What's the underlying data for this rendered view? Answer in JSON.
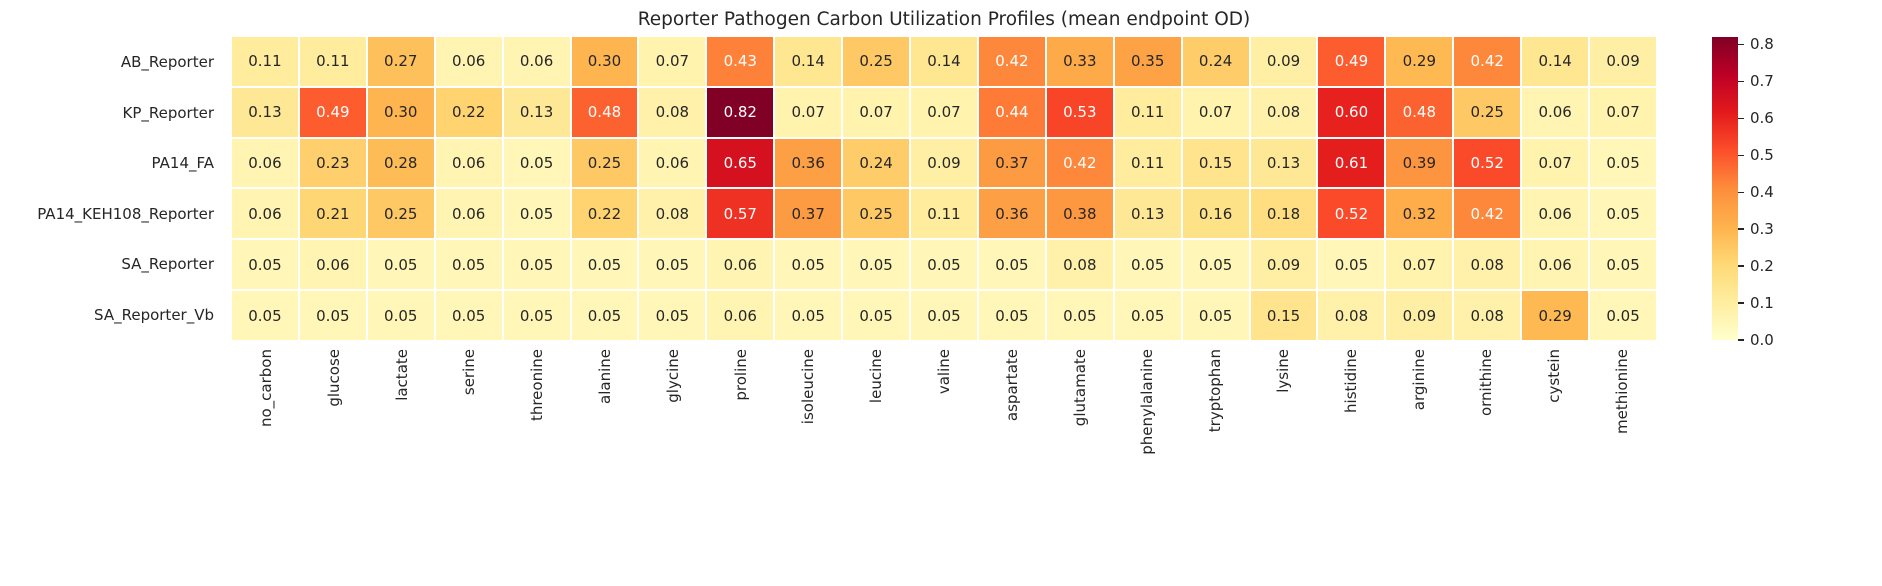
{
  "chart_data": {
    "type": "heatmap",
    "title": "Reporter Pathogen Carbon Utilization Profiles (mean endpoint OD)",
    "rows": [
      "AB_Reporter",
      "KP_Reporter",
      "PA14_FA",
      "PA14_KEH108_Reporter",
      "SA_Reporter",
      "SA_Reporter_Vb"
    ],
    "columns": [
      "no_carbon",
      "glucose",
      "lactate",
      "serine",
      "threonine",
      "alanine",
      "glycine",
      "proline",
      "isoleucine",
      "leucine",
      "valine",
      "aspartate",
      "glutamate",
      "phenylalanine",
      "tryptophan",
      "lysine",
      "histidine",
      "arginine",
      "ornithine",
      "cystein",
      "methionine"
    ],
    "values": [
      [
        0.11,
        0.11,
        0.27,
        0.06,
        0.06,
        0.3,
        0.07,
        0.43,
        0.14,
        0.25,
        0.14,
        0.42,
        0.33,
        0.35,
        0.24,
        0.09,
        0.49,
        0.29,
        0.42,
        0.14,
        0.09
      ],
      [
        0.13,
        0.49,
        0.3,
        0.22,
        0.13,
        0.48,
        0.08,
        0.82,
        0.07,
        0.07,
        0.07,
        0.44,
        0.53,
        0.11,
        0.07,
        0.08,
        0.6,
        0.48,
        0.25,
        0.06,
        0.07
      ],
      [
        0.06,
        0.23,
        0.28,
        0.06,
        0.05,
        0.25,
        0.06,
        0.65,
        0.36,
        0.24,
        0.09,
        0.37,
        0.42,
        0.11,
        0.15,
        0.13,
        0.61,
        0.39,
        0.52,
        0.07,
        0.05
      ],
      [
        0.06,
        0.21,
        0.25,
        0.06,
        0.05,
        0.22,
        0.08,
        0.57,
        0.37,
        0.25,
        0.11,
        0.36,
        0.38,
        0.13,
        0.16,
        0.18,
        0.52,
        0.32,
        0.42,
        0.06,
        0.05
      ],
      [
        0.05,
        0.06,
        0.05,
        0.05,
        0.05,
        0.05,
        0.05,
        0.06,
        0.05,
        0.05,
        0.05,
        0.05,
        0.08,
        0.05,
        0.05,
        0.09,
        0.05,
        0.07,
        0.08,
        0.06,
        0.05
      ],
      [
        0.05,
        0.05,
        0.05,
        0.05,
        0.05,
        0.05,
        0.05,
        0.06,
        0.05,
        0.05,
        0.05,
        0.05,
        0.05,
        0.05,
        0.05,
        0.15,
        0.08,
        0.09,
        0.08,
        0.29,
        0.05
      ]
    ],
    "value_format_decimals": 2,
    "colormap": {
      "name": "YlOrRd",
      "stops": [
        "#ffffcc",
        "#ffeda0",
        "#fed976",
        "#feb24c",
        "#fd8d3c",
        "#fc4e2a",
        "#e31a1c",
        "#bd0026",
        "#800026"
      ],
      "vmin": 0.0,
      "vmax": 0.82
    },
    "annotation_text_dark": "#262626",
    "annotation_text_light": "#ffffff",
    "colorbar_ticks": [
      0.0,
      0.1,
      0.2,
      0.3,
      0.4,
      0.5,
      0.6,
      0.7,
      0.8
    ],
    "legend_position": "right",
    "grid": false
  }
}
